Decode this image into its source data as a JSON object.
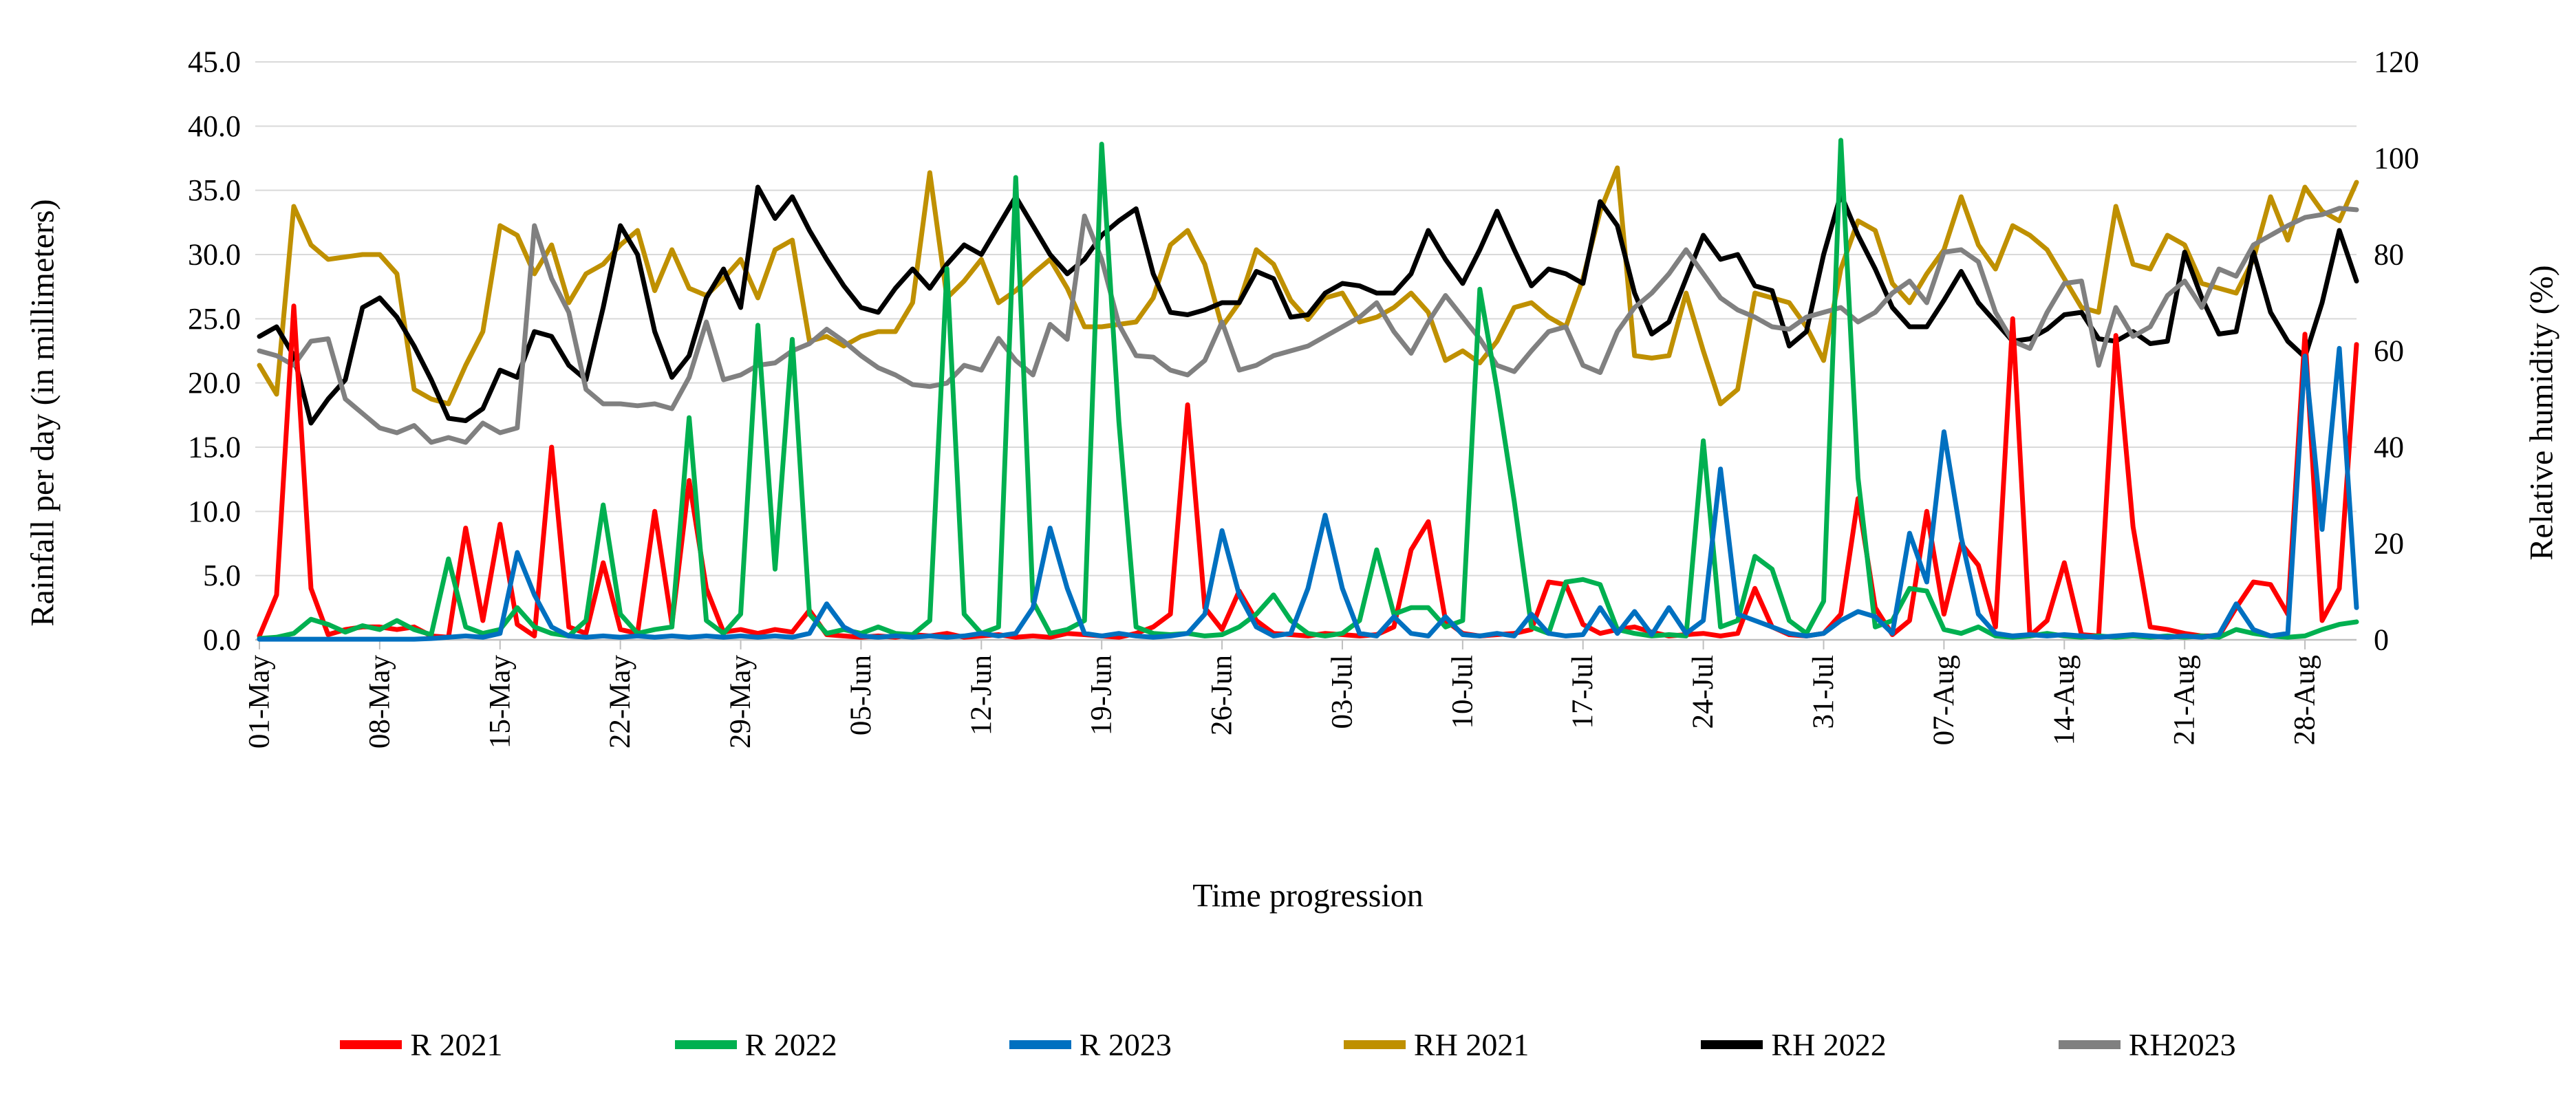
{
  "chart_data": {
    "type": "line",
    "title": "",
    "xlabel": "Time progression",
    "grid": true,
    "legend_position": "bottom",
    "x": {
      "n_points": 123,
      "start": "01-May",
      "end": "31-Aug",
      "tick_every_days": 7,
      "tick_labels": [
        "01-May",
        "08-May",
        "15-May",
        "22-May",
        "29-May",
        "05-Jun",
        "12-Jun",
        "19-Jun",
        "26-Jun",
        "03-Jul",
        "10-Jul",
        "17-Jul",
        "24-Jul",
        "31-Jul",
        "07-Aug",
        "14-Aug",
        "21-Aug",
        "28-Aug"
      ]
    },
    "left_axis": {
      "label": "Rainfall per day (in millimeters)",
      "min": 0,
      "max": 45,
      "step": 5,
      "tick_labels": [
        "0.0",
        "5.0",
        "10.0",
        "15.0",
        "20.0",
        "25.0",
        "30.0",
        "35.0",
        "40.0",
        "45.0"
      ]
    },
    "right_axis": {
      "label": "Relative humidity (%)",
      "min": 0,
      "max": 120,
      "step": 20,
      "tick_labels": [
        "0",
        "20",
        "40",
        "60",
        "80",
        "100",
        "120"
      ]
    },
    "series": [
      {
        "name": "R 2021",
        "color": "#FF0000",
        "axis": "left",
        "unit": "mm",
        "values": [
          0.3,
          3.5,
          26.0,
          4.0,
          0.4,
          0.8,
          1.0,
          1.0,
          0.8,
          1.0,
          0.3,
          0.2,
          8.7,
          1.5,
          9.0,
          1.2,
          0.3,
          15.0,
          1.0,
          0.5,
          6.0,
          0.8,
          0.5,
          10.0,
          1.2,
          12.4,
          4.0,
          0.6,
          0.8,
          0.5,
          0.8,
          0.6,
          2.3,
          0.4,
          0.3,
          0.2,
          0.3,
          0.2,
          0.4,
          0.3,
          0.5,
          0.2,
          0.3,
          0.4,
          0.2,
          0.3,
          0.2,
          0.5,
          0.4,
          0.3,
          0.2,
          0.5,
          1.0,
          2.0,
          18.3,
          2.5,
          0.8,
          3.8,
          1.5,
          0.5,
          0.4,
          0.3,
          0.5,
          0.4,
          0.3,
          0.4,
          1.0,
          7.0,
          9.2,
          1.5,
          0.5,
          0.3,
          0.4,
          0.5,
          0.8,
          4.5,
          4.3,
          1.2,
          0.5,
          0.8,
          1.0,
          0.6,
          0.3,
          0.4,
          0.5,
          0.3,
          0.5,
          4.0,
          1.0,
          0.4,
          0.3,
          0.5,
          2.0,
          11.0,
          2.5,
          0.4,
          1.5,
          10.0,
          2.0,
          7.5,
          5.8,
          1.0,
          25.0,
          0.3,
          1.5,
          6.0,
          0.4,
          0.3,
          23.7,
          8.8,
          1.0,
          0.8,
          0.5,
          0.3,
          0.3,
          2.5,
          4.5,
          4.3,
          2.0,
          23.8,
          1.5,
          4.0,
          23.0
        ]
      },
      {
        "name": "R 2022",
        "color": "#00B050",
        "axis": "left",
        "unit": "mm",
        "values": [
          0.1,
          0.2,
          0.5,
          1.6,
          1.2,
          0.6,
          1.1,
          0.8,
          1.5,
          0.8,
          0.4,
          6.3,
          1.0,
          0.5,
          0.8,
          2.5,
          1.0,
          0.5,
          0.3,
          1.5,
          10.5,
          2.0,
          0.5,
          0.8,
          1.0,
          17.3,
          1.5,
          0.5,
          2.0,
          24.5,
          5.5,
          23.4,
          2.0,
          0.5,
          0.8,
          0.5,
          1.0,
          0.5,
          0.4,
          1.5,
          28.9,
          2.0,
          0.5,
          1.0,
          36.0,
          3.0,
          0.5,
          0.8,
          1.5,
          38.6,
          17.0,
          1.0,
          0.5,
          0.4,
          0.5,
          0.3,
          0.4,
          1.0,
          2.0,
          3.5,
          1.5,
          0.5,
          0.3,
          0.5,
          1.5,
          7.0,
          2.0,
          2.5,
          2.5,
          1.0,
          1.5,
          27.3,
          19.5,
          10.8,
          1.0,
          0.5,
          4.5,
          4.7,
          4.3,
          0.8,
          0.5,
          0.3,
          0.4,
          0.3,
          15.5,
          1.0,
          1.5,
          6.5,
          5.5,
          1.5,
          0.5,
          3.0,
          38.9,
          12.6,
          1.0,
          1.5,
          4.0,
          3.8,
          0.8,
          0.5,
          1.0,
          0.3,
          0.2,
          0.3,
          0.5,
          0.3,
          0.2,
          0.3,
          0.2,
          0.3,
          0.2,
          0.3,
          0.2,
          0.3,
          0.2,
          0.8,
          0.5,
          0.3,
          0.2,
          0.3,
          0.8,
          1.2,
          1.4
        ]
      },
      {
        "name": "R 2023",
        "color": "#0070C0",
        "axis": "left",
        "unit": "mm",
        "values": [
          0.05,
          0.05,
          0.05,
          0.05,
          0.05,
          0.05,
          0.05,
          0.05,
          0.05,
          0.05,
          0.1,
          0.2,
          0.3,
          0.2,
          0.5,
          6.8,
          3.5,
          1.0,
          0.3,
          0.2,
          0.3,
          0.2,
          0.3,
          0.2,
          0.3,
          0.2,
          0.3,
          0.2,
          0.3,
          0.2,
          0.3,
          0.2,
          0.5,
          2.8,
          1.0,
          0.3,
          0.2,
          0.3,
          0.2,
          0.3,
          0.2,
          0.3,
          0.5,
          0.3,
          0.5,
          2.5,
          8.7,
          4.0,
          0.5,
          0.3,
          0.5,
          0.3,
          0.2,
          0.3,
          0.5,
          2.0,
          8.5,
          3.5,
          1.0,
          0.3,
          0.5,
          4.0,
          9.7,
          4.0,
          0.5,
          0.3,
          1.8,
          0.5,
          0.3,
          1.8,
          0.4,
          0.3,
          0.5,
          0.3,
          2.0,
          0.5,
          0.3,
          0.4,
          2.5,
          0.5,
          2.2,
          0.4,
          2.5,
          0.5,
          1.5,
          13.3,
          2.0,
          1.5,
          1.0,
          0.5,
          0.3,
          0.5,
          1.5,
          2.2,
          1.8,
          0.5,
          8.3,
          4.5,
          16.2,
          8.0,
          2.0,
          0.5,
          0.3,
          0.4,
          0.3,
          0.4,
          0.3,
          0.2,
          0.3,
          0.4,
          0.3,
          0.2,
          0.3,
          0.2,
          0.4,
          2.8,
          0.8,
          0.3,
          0.5,
          22.1,
          8.6,
          22.7,
          2.5
        ]
      },
      {
        "name": "RH 2021",
        "color": "#BF9000",
        "axis": "right",
        "unit": "%",
        "values": [
          57,
          51,
          90,
          82,
          79,
          79.5,
          80,
          80,
          76,
          52,
          50,
          49,
          57,
          64,
          86,
          84,
          76,
          82,
          70,
          76,
          78,
          82,
          85,
          72.5,
          81,
          73,
          71.5,
          75,
          79,
          71,
          81,
          83,
          62,
          63,
          61,
          63,
          64,
          64,
          70,
          97,
          71,
          74.5,
          79,
          70,
          72.5,
          76,
          79,
          73,
          65,
          65,
          65.5,
          66,
          71,
          82,
          85,
          78,
          65,
          70,
          81,
          78,
          70.5,
          66.5,
          71,
          72,
          66,
          67,
          69,
          72,
          68,
          58,
          60,
          57.5,
          62,
          69,
          70,
          67,
          65,
          75,
          89,
          98,
          59,
          58.5,
          59,
          72,
          60,
          49,
          52,
          72,
          71,
          70,
          65,
          58,
          77,
          87,
          85,
          74,
          70,
          76,
          81,
          92,
          82,
          77,
          86,
          84,
          81,
          75,
          69,
          68,
          90,
          78,
          77,
          84,
          82,
          74,
          73,
          72,
          79,
          92,
          83,
          94,
          89,
          87,
          95
        ]
      },
      {
        "name": "RH 2022",
        "color": "#000000",
        "axis": "right",
        "unit": "%",
        "values": [
          63,
          65,
          59,
          45,
          50,
          54,
          69,
          71,
          67,
          61,
          54,
          46,
          45.5,
          48,
          56,
          54.5,
          64,
          63,
          57,
          54,
          69,
          86,
          80,
          64,
          54.5,
          59,
          71,
          77,
          69,
          94,
          87.5,
          92,
          85,
          79,
          73.5,
          69,
          68,
          73,
          77,
          73,
          78,
          82,
          80,
          86,
          92,
          86,
          80,
          76,
          79,
          84,
          87,
          89.5,
          76,
          68,
          67.5,
          68.5,
          70,
          70,
          76.5,
          75,
          67,
          67.5,
          72,
          74,
          73.5,
          72,
          72,
          76,
          85,
          79,
          74,
          81,
          89,
          81,
          73.5,
          77,
          76,
          74,
          91,
          86,
          72,
          63.5,
          66,
          75,
          84,
          79,
          80,
          73.5,
          72.5,
          61,
          64,
          80,
          92.5,
          84,
          77,
          69,
          65,
          65,
          70.5,
          76.5,
          70,
          66,
          62,
          62.5,
          64.5,
          67.5,
          68,
          62.5,
          62,
          64,
          61.5,
          62,
          80.5,
          71,
          63.5,
          64,
          80.5,
          68,
          62,
          58.7,
          70,
          85,
          74.5
        ]
      },
      {
        "name": "RH2023",
        "color": "#808080",
        "axis": "right",
        "unit": "%",
        "values": [
          60,
          59,
          57,
          62,
          62.5,
          50,
          47,
          44,
          43,
          44.5,
          41,
          42,
          41,
          45,
          43,
          44,
          86,
          75,
          68,
          52,
          49,
          49,
          48.6,
          49,
          48,
          54.5,
          66,
          54,
          55,
          57,
          57.5,
          60,
          61.5,
          64.5,
          62,
          59,
          56.5,
          55,
          53,
          52.6,
          53.3,
          57,
          56,
          62.6,
          58,
          55,
          65.5,
          62.4,
          88,
          79,
          65.5,
          59,
          58.7,
          56,
          55,
          58,
          66,
          56,
          57,
          59,
          60,
          61,
          63,
          65,
          67,
          70,
          64,
          59.5,
          66,
          71.5,
          67,
          62.5,
          57,
          55.7,
          60,
          64,
          65,
          57,
          55.5,
          64,
          69,
          72,
          76,
          81,
          76,
          71,
          68.5,
          67,
          65,
          64.5,
          67,
          68,
          69,
          66,
          68,
          72,
          74.5,
          70,
          80.5,
          81,
          78.5,
          68,
          62,
          60.5,
          68,
          74,
          74.5,
          57,
          69,
          63,
          65,
          71.5,
          74.5,
          69,
          77,
          75.5,
          82,
          84,
          86,
          87.7,
          88.3,
          89.6,
          89.3
        ]
      }
    ]
  }
}
